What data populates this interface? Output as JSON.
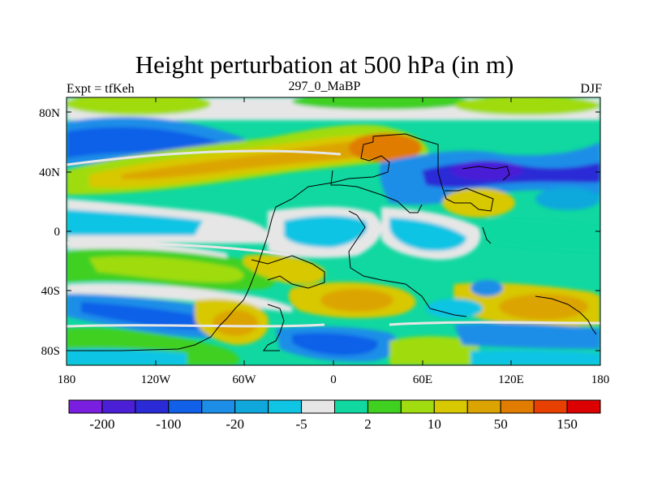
{
  "title": "Height perturbation at 500 hPa (in m)",
  "left_label": "Expt = tfKeh",
  "center_label": "297_0_MaBP",
  "right_label": "DJF",
  "lat_labels": [
    "80N",
    "40N",
    "0",
    "40S",
    "80S"
  ],
  "lon_labels": [
    "180",
    "120W",
    "60W",
    "0",
    "60E",
    "120E",
    "180"
  ],
  "colorbar": {
    "colors": [
      "#7a1fe0",
      "#4a1fd6",
      "#2a2ad6",
      "#1060e8",
      "#1c8ee8",
      "#10a8dc",
      "#10c4e4",
      "#e6e6e6",
      "#10d8a0",
      "#40d020",
      "#a0dc10",
      "#d8c800",
      "#dca400",
      "#e07c00",
      "#e84000",
      "#dc0000"
    ],
    "labels": [
      "-200",
      "-100",
      "-20",
      "-5",
      "2",
      "10",
      "50",
      "150"
    ]
  },
  "legend_colors": {
    "neutral": "#e6e6e6",
    "coast": "#000000"
  }
}
